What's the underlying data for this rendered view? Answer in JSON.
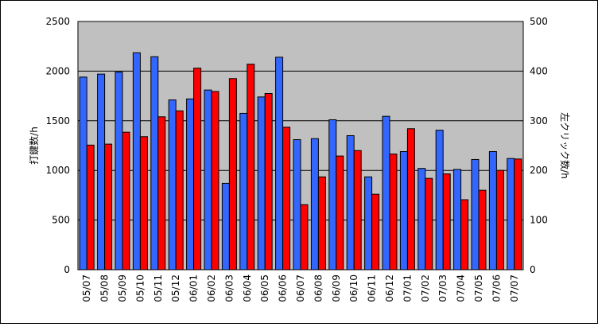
{
  "chart_data": {
    "type": "bar",
    "title": "",
    "ylabel_left": "打鍵数/h",
    "ylabel_right": "左クリック数/h",
    "ylim_left": [
      0,
      2500
    ],
    "ylim_right": [
      0,
      500
    ],
    "yticks_left": [
      "0",
      "500",
      "1000",
      "1500",
      "2000",
      "2500"
    ],
    "yticks_right": [
      "0",
      "100",
      "200",
      "300",
      "400",
      "500"
    ],
    "grid": true,
    "background_color": "#c0c0c0",
    "categories": [
      "05/07",
      "05/08",
      "05/09",
      "05/10",
      "05/11",
      "05/12",
      "06/01",
      "06/02",
      "06/03",
      "06/04",
      "06/05",
      "06/06",
      "06/07",
      "06/08",
      "06/09",
      "06/10",
      "06/11",
      "06/12",
      "07/01",
      "07/02",
      "07/03",
      "07/04",
      "07/05",
      "07/06",
      "07/07"
    ],
    "series": [
      {
        "axis": "left",
        "color": "#3366ff",
        "values": [
          1940,
          1970,
          1990,
          2185,
          2145,
          1710,
          1720,
          1810,
          870,
          1575,
          1740,
          2140,
          1310,
          1320,
          1510,
          1350,
          935,
          1545,
          1190,
          1020,
          1405,
          1010,
          1110,
          1190,
          1120
        ]
      },
      {
        "axis": "right",
        "color": "#ff0000",
        "values": [
          251,
          253,
          277,
          268,
          308,
          320,
          406,
          359,
          385,
          414,
          355,
          287,
          131,
          187,
          229,
          240,
          152,
          233,
          284,
          184,
          193,
          141,
          160,
          200,
          223
        ]
      }
    ]
  }
}
